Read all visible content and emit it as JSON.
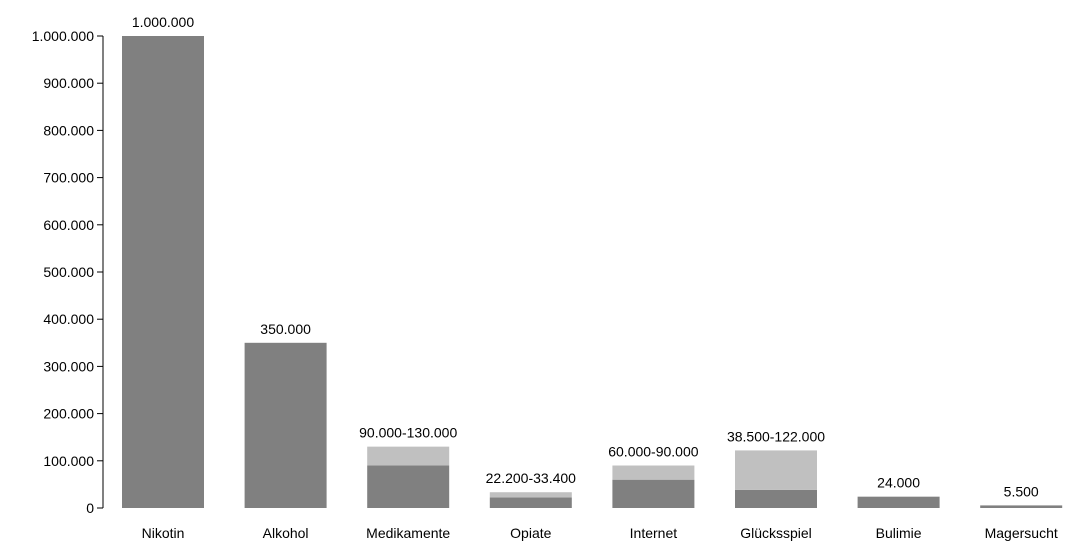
{
  "chart_data": {
    "type": "bar",
    "stacked": true,
    "categories": [
      "Nikotin",
      "Alkohol",
      "Medikamente",
      "Opiate",
      "Internet",
      "Glücksspiel",
      "Bulimie",
      "Magersucht"
    ],
    "series": [
      {
        "values": [
          1000000,
          350000,
          90000,
          22200,
          60000,
          38500,
          24000,
          5500
        ],
        "color": "#808080"
      },
      {
        "values": [
          0,
          0,
          40000,
          11200,
          30000,
          83500,
          0,
          0
        ],
        "color": "#c0c0c0"
      }
    ],
    "data_labels": [
      "1.000.000",
      "350.000",
      "90.000-130.000",
      "22.200-33.400",
      "60.000-90.000",
      "38.500-122.000",
      "24.000",
      "5.500"
    ],
    "y_ticks": [
      0,
      100000,
      200000,
      300000,
      400000,
      500000,
      600000,
      700000,
      800000,
      900000,
      1000000
    ],
    "y_tick_labels": [
      "0",
      "100.000",
      "200.000",
      "300.000",
      "400.000",
      "500.000",
      "600.000",
      "700.000",
      "800.000",
      "900.000",
      "1.000.000"
    ],
    "ylim": [
      0,
      1000000
    ],
    "grid": false,
    "legend": "none",
    "title": "",
    "xlabel": "",
    "ylabel": ""
  }
}
